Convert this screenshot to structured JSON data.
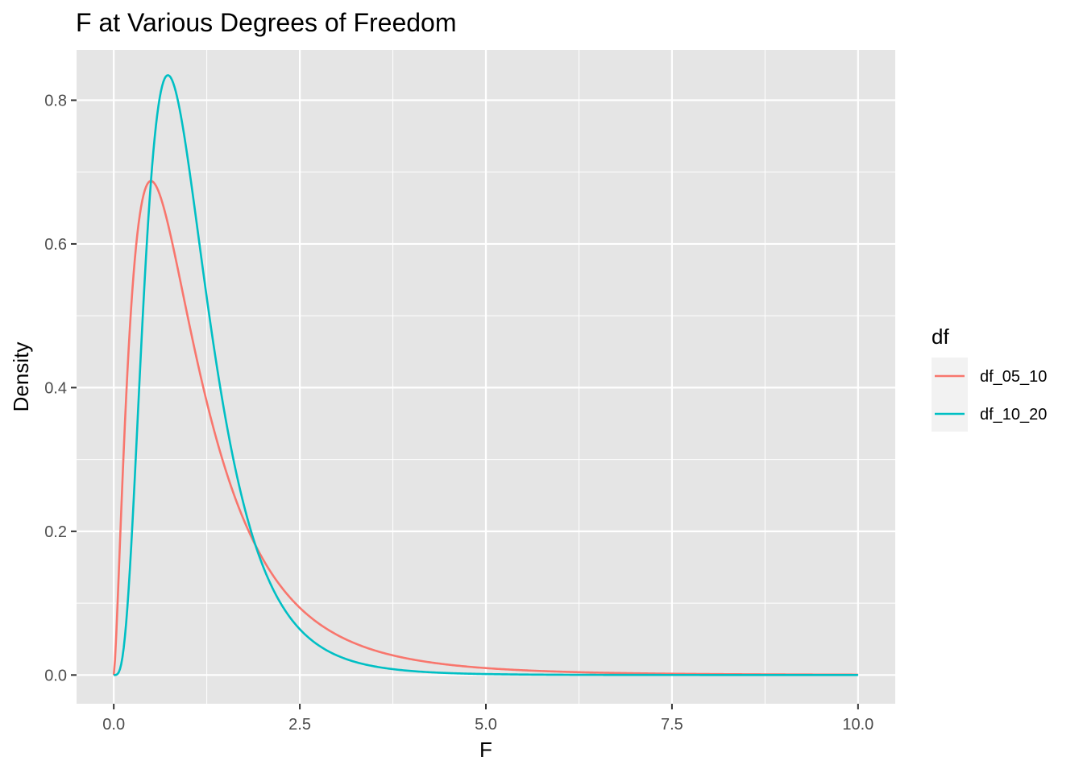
{
  "chart_data": {
    "type": "line",
    "title": "F at Various Degrees of Freedom",
    "xlabel": "F",
    "ylabel": "Density",
    "xlim": [
      -0.5,
      10.5
    ],
    "ylim": [
      -0.04,
      0.87
    ],
    "x_ticks": [
      0.0,
      2.5,
      5.0,
      7.5,
      10.0
    ],
    "x_tick_labels": [
      "0.0",
      "2.5",
      "5.0",
      "7.5",
      "10.0"
    ],
    "y_ticks": [
      0.0,
      0.2,
      0.4,
      0.6,
      0.8
    ],
    "y_tick_labels": [
      "0.0",
      "0.2",
      "0.4",
      "0.6",
      "0.8"
    ],
    "grid": true,
    "panel_background": "#E5E5E5",
    "grid_color": "#FFFFFF",
    "legend": {
      "title": "df",
      "position": "right"
    },
    "series": [
      {
        "name": "df_05_10",
        "color": "#F8766D",
        "df1": 5,
        "df2": 10,
        "peak": {
          "x": 0.5,
          "y": 0.688
        }
      },
      {
        "name": "df_10_20",
        "color": "#00BFC4",
        "df1": 10,
        "df2": 20,
        "peak": {
          "x": 0.73,
          "y": 0.835
        }
      }
    ],
    "x_range_plotted": [
      0,
      10
    ]
  }
}
